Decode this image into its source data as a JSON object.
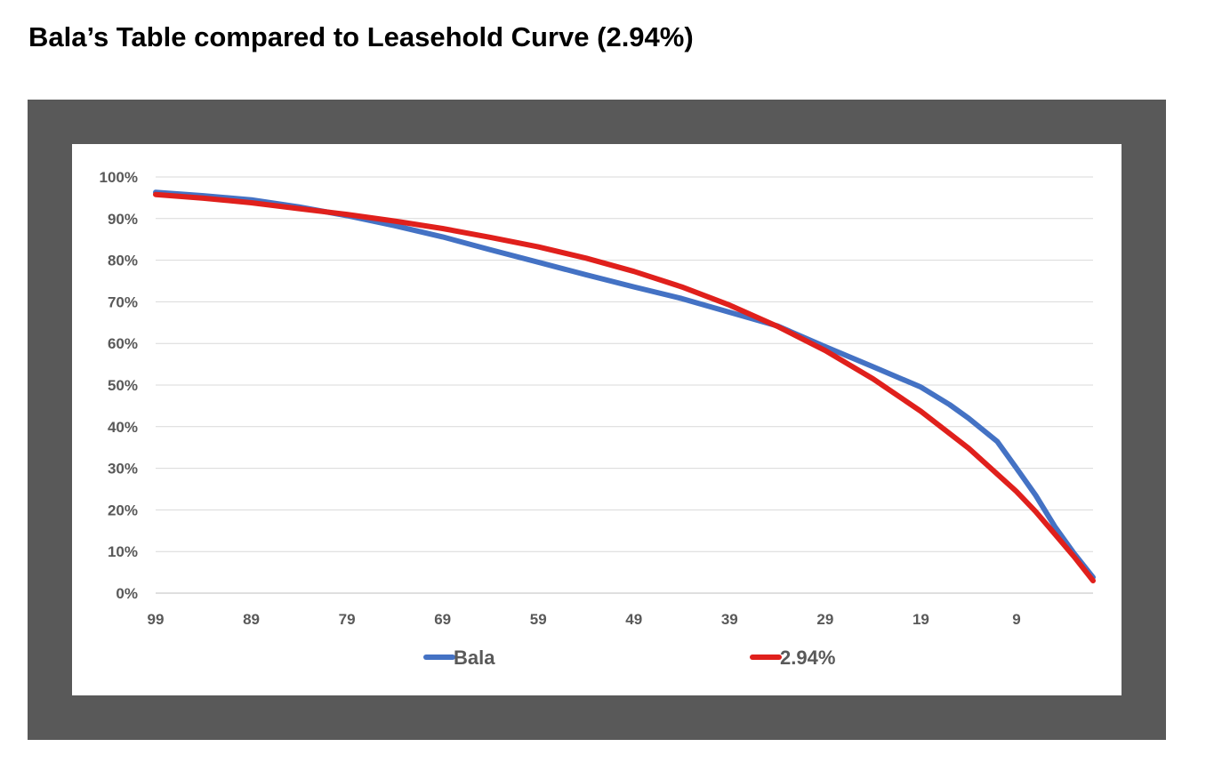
{
  "page": {
    "title": "Bala’s Table compared to Leasehold Curve (2.94%)"
  },
  "chart_data": {
    "type": "line",
    "title": "",
    "xlabel": "",
    "ylabel": "",
    "x_reversed": true,
    "xlim": [
      99,
      1
    ],
    "ylim": [
      0,
      100
    ],
    "y_ticks": [
      0,
      10,
      20,
      30,
      40,
      50,
      60,
      70,
      80,
      90,
      100
    ],
    "y_tick_labels": [
      "0%",
      "10%",
      "20%",
      "30%",
      "40%",
      "50%",
      "60%",
      "70%",
      "80%",
      "90%",
      "100%"
    ],
    "x_ticks": [
      99,
      89,
      79,
      69,
      59,
      49,
      39,
      29,
      19,
      9
    ],
    "x_tick_labels": [
      "99",
      "89",
      "79",
      "69",
      "59",
      "49",
      "39",
      "29",
      "19",
      "9"
    ],
    "grid": true,
    "legend_position": "bottom",
    "series": [
      {
        "name": "Bala",
        "color": "#4472C4",
        "x": [
          99,
          94,
          89,
          84,
          79,
          74,
          69,
          64,
          59,
          54,
          49,
          44,
          39,
          34,
          29,
          24,
          19,
          16,
          14,
          11,
          9,
          7,
          5,
          3,
          1
        ],
        "y": [
          96.3,
          95.5,
          94.5,
          92.8,
          90.7,
          88.3,
          85.6,
          82.5,
          79.5,
          76.5,
          73.6,
          70.8,
          67.5,
          64.2,
          59.2,
          54.4,
          49.5,
          45.3,
          42.0,
          36.4,
          30.0,
          23.5,
          16.0,
          9.6,
          3.8
        ]
      },
      {
        "name": "2.94%",
        "color": "#E0201C",
        "x": [
          99,
          94,
          89,
          84,
          79,
          74,
          69,
          64,
          59,
          54,
          49,
          44,
          39,
          34,
          29,
          24,
          19,
          14,
          9,
          7,
          5,
          3,
          1
        ],
        "y": [
          95.8,
          94.9,
          93.8,
          92.4,
          91.0,
          89.4,
          87.6,
          85.5,
          83.2,
          80.5,
          77.3,
          73.6,
          69.2,
          64.1,
          58.3,
          51.5,
          43.7,
          34.8,
          24.4,
          19.6,
          14.2,
          8.8,
          3.0
        ]
      }
    ]
  }
}
